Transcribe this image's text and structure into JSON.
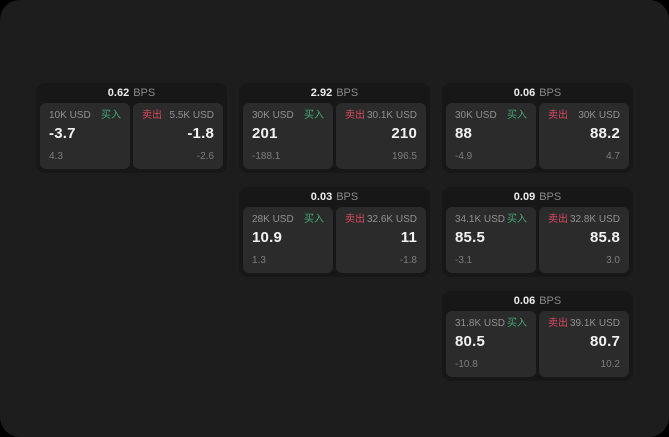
{
  "labels": {
    "bps_unit": "BPS",
    "buy": "买入",
    "sell": "卖出"
  },
  "colors": {
    "page_background": "#1d1d1d",
    "card_background": "#171717",
    "panel_background": "#2b2b2b",
    "buy_green": "#42a974",
    "sell_red": "#d8495f",
    "primary_text": "#f2f2f2",
    "muted_text": "#8a8a8a"
  },
  "cards": [
    {
      "bps": "0.62",
      "buy": {
        "amount": "10K USD",
        "price": "-3.7",
        "delta": "4.3"
      },
      "sell": {
        "amount": "5.5K USD",
        "price": "-1.8",
        "delta": "-2.6"
      }
    },
    {
      "bps": "2.92",
      "buy": {
        "amount": "30K USD",
        "price": "201",
        "delta": "-188.1"
      },
      "sell": {
        "amount": "30.1K USD",
        "price": "210",
        "delta": "196.5"
      }
    },
    {
      "bps": "0.06",
      "buy": {
        "amount": "30K USD",
        "price": "88",
        "delta": "-4.9"
      },
      "sell": {
        "amount": "30K USD",
        "price": "88.2",
        "delta": "4.7"
      }
    },
    {
      "bps": "0.03",
      "buy": {
        "amount": "28K USD",
        "price": "10.9",
        "delta": "1.3"
      },
      "sell": {
        "amount": "32.6K USD",
        "price": "11",
        "delta": "-1.8"
      }
    },
    {
      "bps": "0.09",
      "buy": {
        "amount": "34.1K USD",
        "price": "85.5",
        "delta": "-3.1"
      },
      "sell": {
        "amount": "32.8K USD",
        "price": "85.8",
        "delta": "3.0"
      }
    },
    {
      "bps": "0.06",
      "buy": {
        "amount": "31.8K USD",
        "price": "80.5",
        "delta": "-10.8"
      },
      "sell": {
        "amount": "39.1K USD",
        "price": "80.7",
        "delta": "10.2"
      }
    }
  ]
}
